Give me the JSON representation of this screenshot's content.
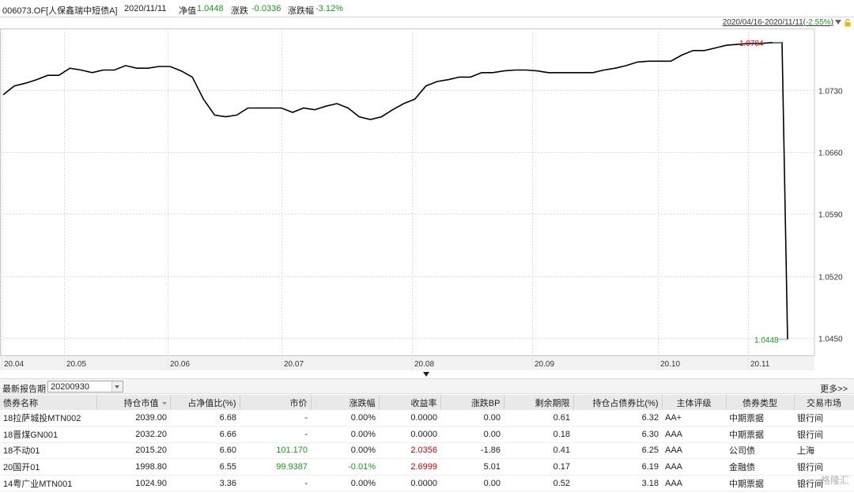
{
  "header": {
    "fund": "006073.OF[人保鑫瑞中短债A]",
    "date": "2020/11/11",
    "nav_label": "净值",
    "nav_value": "1.0448",
    "change_label": "涨跌",
    "change_value": "-0.0336",
    "change_pct_label": "涨跌幅",
    "change_pct_value": "-3.12%"
  },
  "range": {
    "text": "2020/04/16-2020/11/11(",
    "pct": "-2.55%",
    "close": ")"
  },
  "chart_data": {
    "type": "line",
    "x_labels": [
      "20.04",
      "20.05",
      "20.06",
      "20.07",
      "20.08",
      "20.09",
      "20.10",
      "20.11"
    ],
    "y_ticks": [
      "1.0730",
      "1.0660",
      "1.0590",
      "1.0520",
      "1.0450"
    ],
    "ylim": [
      1.043,
      1.08
    ],
    "grid": true,
    "max_label": "1.0784",
    "min_label": "1.0448",
    "series": [
      {
        "values": [
          1.0725,
          1.0735,
          1.0738,
          1.0742,
          1.0747,
          1.0747,
          1.0755,
          1.0753,
          1.075,
          1.0753,
          1.0753,
          1.0758,
          1.0755,
          1.0755,
          1.0757,
          1.0757,
          1.0752,
          1.0745,
          1.072,
          1.0702,
          1.07,
          1.0702,
          1.071,
          1.071,
          1.071,
          1.071,
          1.0705,
          1.071,
          1.0708,
          1.0712,
          1.0715,
          1.071,
          1.07,
          1.0697,
          1.07,
          1.0708,
          1.0715,
          1.072,
          1.0735,
          1.074,
          1.0742,
          1.0745,
          1.0745,
          1.075,
          1.075,
          1.0752,
          1.0753,
          1.0753,
          1.0752,
          1.075,
          1.075,
          1.075,
          1.075,
          1.075,
          1.0753,
          1.0755,
          1.0758,
          1.0762,
          1.0763,
          1.0763,
          1.0763,
          1.077,
          1.0775,
          1.0775,
          1.0778,
          1.0781,
          1.0782,
          1.0783,
          1.0783,
          1.0784,
          1.0784,
          1.0448
        ]
      }
    ]
  },
  "report": {
    "label": "最新报告期",
    "period": "20200930",
    "more": "更多>>"
  },
  "table": {
    "headers": [
      "债券名称",
      "持仓市值",
      "占净值比(%)",
      "市价",
      "涨跌幅",
      "收益率",
      "涨跌BP",
      "剩余期限",
      "持仓占债券比(%)",
      "主体评级",
      "债券类型",
      "交易市场"
    ],
    "rows": [
      [
        "18拉萨城投MTN002",
        "2039.00",
        "6.68",
        "-",
        "0.00%",
        "0.0000",
        "0.00",
        "0.61",
        "6.32",
        "AA+",
        "中期票据",
        "银行间"
      ],
      [
        "18晋煤GN001",
        "2032.20",
        "6.66",
        "-",
        "0.00%",
        "0.0000",
        "0.00",
        "0.18",
        "6.30",
        "AAA",
        "中期票据",
        "银行间"
      ],
      [
        "18不动01",
        "2015.20",
        "6.60",
        "101.170",
        "0.00%",
        "2.0356",
        "-1.86",
        "0.41",
        "6.25",
        "AAA",
        "公司债",
        "上海"
      ],
      [
        "20国开01",
        "1998.80",
        "6.55",
        "99.9387",
        "-0.01%",
        "2.6999",
        "5.01",
        "0.17",
        "6.19",
        "AAA",
        "金融债",
        "银行间"
      ],
      [
        "14粤广业MTN001",
        "1024.90",
        "3.36",
        "-",
        "0.00%",
        "0.0000",
        "0.00",
        "0.52",
        "3.18",
        "AAA",
        "中期票据",
        "银行间"
      ]
    ]
  },
  "colors": {
    "up": "#d40000",
    "down": "#1a9a1a",
    "line": "#000000"
  }
}
